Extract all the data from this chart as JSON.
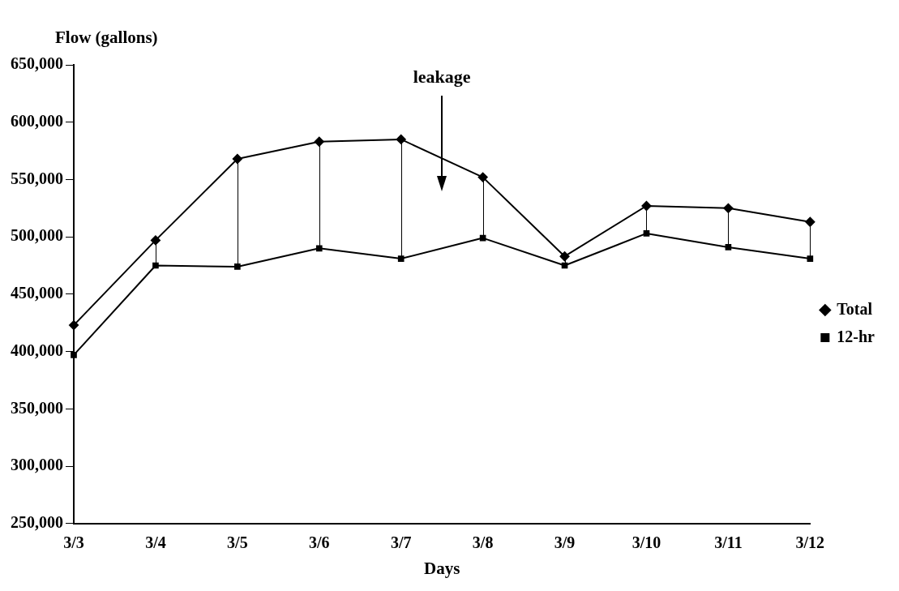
{
  "chart_data": {
    "type": "line",
    "ylabel": "Flow (gallons)",
    "xlabel": "Days",
    "categories": [
      "3/3",
      "3/4",
      "3/5",
      "3/6",
      "3/7",
      "3/8",
      "3/9",
      "3/10",
      "3/11",
      "3/12"
    ],
    "series": [
      {
        "name": "Total",
        "color": "#000000",
        "marker": "diamond",
        "values": [
          423000,
          497000,
          568000,
          583000,
          585000,
          552000,
          483000,
          527000,
          525000,
          513000
        ]
      },
      {
        "name": "12-hr",
        "color": "#000000",
        "marker": "square",
        "values": [
          397000,
          475000,
          474000,
          490000,
          481000,
          499000,
          475000,
          503000,
          491000,
          481000
        ]
      }
    ],
    "ylim": [
      250000,
      650000
    ],
    "yticks": [
      {
        "value": 250000,
        "label": "250,000"
      },
      {
        "value": 300000,
        "label": "300,000"
      },
      {
        "value": 350000,
        "label": "350,000"
      },
      {
        "value": 400000,
        "label": "400,000"
      },
      {
        "value": 450000,
        "label": "450,000"
      },
      {
        "value": 500000,
        "label": "500,000"
      },
      {
        "value": 550000,
        "label": "550,000"
      },
      {
        "value": 600000,
        "label": "600,000"
      },
      {
        "value": 650000,
        "label": "650,000"
      }
    ],
    "annotations": [
      "leakage"
    ],
    "grid": false,
    "legend": "right"
  }
}
